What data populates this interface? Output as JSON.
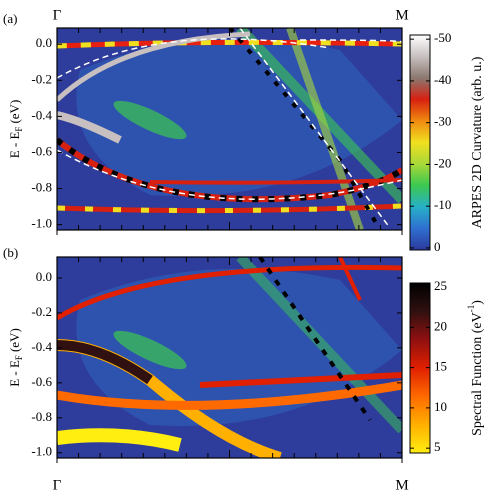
{
  "chart_data": [
    {
      "type": "heatmap",
      "panel_label": "(a)",
      "y_label": "E - E",
      "y_label_subscript": "F",
      "y_label_suffix": "(eV)",
      "xlim": [
        0,
        1
      ],
      "xticks": [
        {
          "value": 0,
          "label": "Γ"
        },
        {
          "value": 1,
          "label": "M"
        }
      ],
      "x_labels_position": "top",
      "ylim": [
        -1.03,
        0.09
      ],
      "yticks": [
        {
          "value": 0,
          "label": "0.0"
        },
        -0.2,
        -0.4,
        -0.6,
        -0.8,
        {
          "value": -1,
          "label": "-1.0"
        }
      ],
      "colorbar_label": "ARPES 2D Curvature (arb. u.)",
      "clim": [
        0.5,
        -51
      ],
      "cticks": [
        0,
        -10,
        -20,
        -30,
        -40,
        -50
      ],
      "colorscale": [
        "#2b3a9c",
        "#2f6fd0",
        "#27b0c8",
        "#3cc850",
        "#a8d838",
        "#f0e020",
        "#f08a10",
        "#d82010",
        "#8a7870",
        "#c8c0c0",
        "#ffffff"
      ]
    },
    {
      "type": "heatmap",
      "panel_label": "(b)",
      "y_label": "E - E",
      "y_label_subscript": "F",
      "y_label_suffix": "(eV)",
      "xlim": [
        0,
        1
      ],
      "xticks": [
        {
          "value": 0,
          "label": "Γ"
        },
        {
          "value": 1,
          "label": "M"
        }
      ],
      "x_labels_position": "bottom",
      "ylim": [
        -1.03,
        0.12
      ],
      "yticks": [
        {
          "value": 0,
          "label": "0.0"
        },
        -0.2,
        -0.4,
        -0.6,
        -0.8,
        {
          "value": -1,
          "label": "-1.0"
        }
      ],
      "colorbar_label": "Spectral Function (eV",
      "colorbar_label_superscript": "-1",
      "colorbar_label_suffix": ")",
      "clim": [
        4.4,
        25.5
      ],
      "cticks": [
        5,
        10,
        15,
        20,
        25
      ],
      "colorscale": [
        "#ffee10",
        "#ffb000",
        "#ff6a00",
        "#e02000",
        "#901010",
        "#301010",
        "#000000"
      ]
    }
  ]
}
